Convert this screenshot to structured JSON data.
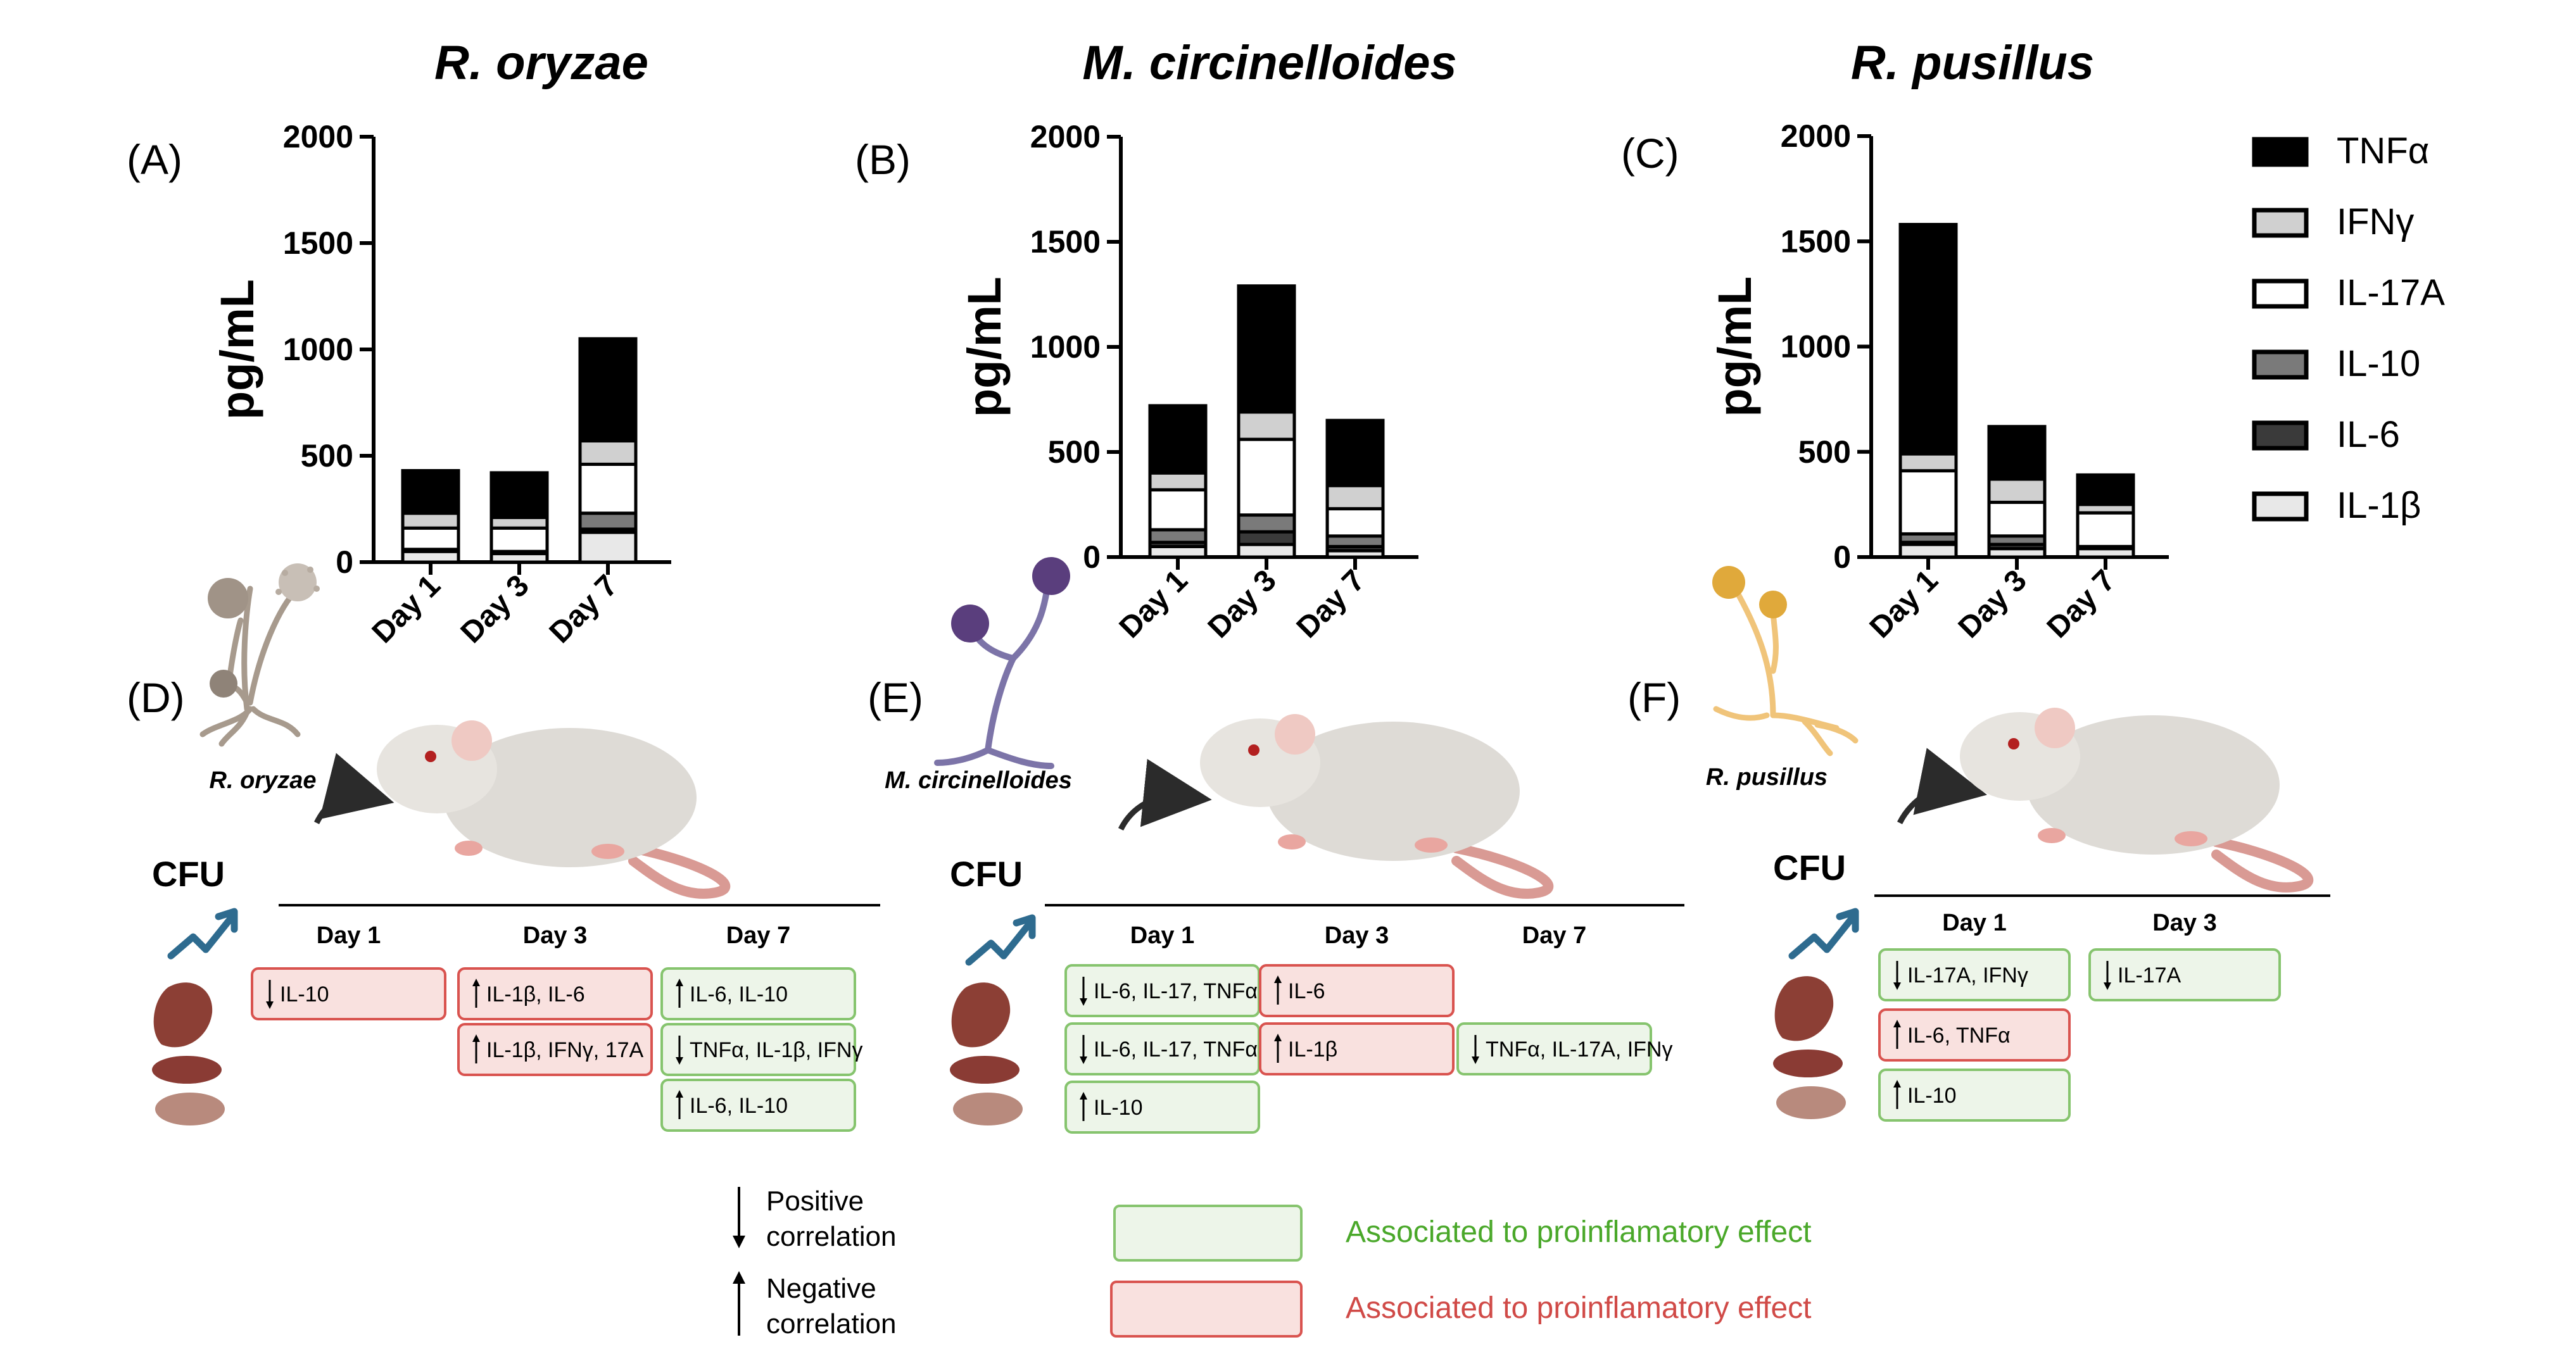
{
  "figure": {
    "species_titles": [
      "R. oryzae",
      "M. circinelloides",
      "R. pusillus"
    ],
    "panel_letters": [
      "(A)",
      "(B)",
      "(C)",
      "(D)",
      "(E)",
      "(F)"
    ]
  },
  "chart_data": [
    {
      "type": "bar",
      "stacked": true,
      "title": "R. oryzae",
      "panel": "(A)",
      "ylabel": "pg/mL",
      "ylim": [
        0,
        2000
      ],
      "yticks": [
        "0",
        "500",
        "1000",
        "1500",
        "2000"
      ],
      "categories": [
        "Day 1",
        "Day 3",
        "Day 7"
      ],
      "series": [
        {
          "name": "IL-1β",
          "values": [
            50,
            40,
            140
          ]
        },
        {
          "name": "IL-6",
          "values": [
            5,
            5,
            15
          ]
        },
        {
          "name": "IL-10",
          "values": [
            5,
            5,
            75
          ]
        },
        {
          "name": "IL-17A",
          "values": [
            100,
            110,
            230
          ]
        },
        {
          "name": "IFNγ",
          "values": [
            70,
            50,
            110
          ]
        },
        {
          "name": "TNFα",
          "values": [
            200,
            210,
            480
          ]
        }
      ]
    },
    {
      "type": "bar",
      "stacked": true,
      "title": "M. circinelloides",
      "panel": "(B)",
      "ylabel": "pg/mL",
      "ylim": [
        0,
        2000
      ],
      "yticks": [
        "0",
        "500",
        "1000",
        "1500",
        "2000"
      ],
      "categories": [
        "Day 1",
        "Day 3",
        "Day 7"
      ],
      "series": [
        {
          "name": "IL-1β",
          "values": [
            50,
            60,
            30
          ]
        },
        {
          "name": "IL-6",
          "values": [
            20,
            60,
            20
          ]
        },
        {
          "name": "IL-10",
          "values": [
            60,
            80,
            50
          ]
        },
        {
          "name": "IL-17A",
          "values": [
            190,
            360,
            130
          ]
        },
        {
          "name": "IFNγ",
          "values": [
            80,
            130,
            110
          ]
        },
        {
          "name": "TNFα",
          "values": [
            320,
            600,
            310
          ]
        }
      ]
    },
    {
      "type": "bar",
      "stacked": true,
      "title": "R. pusillus",
      "panel": "(C)",
      "ylabel": "pg/mL",
      "ylim": [
        0,
        2000
      ],
      "yticks": [
        "0",
        "500",
        "1000",
        "1500",
        "2000"
      ],
      "categories": [
        "Day 1",
        "Day 3",
        "Day 7"
      ],
      "series": [
        {
          "name": "IL-1β",
          "values": [
            60,
            40,
            40
          ]
        },
        {
          "name": "IL-6",
          "values": [
            10,
            20,
            5
          ]
        },
        {
          "name": "IL-10",
          "values": [
            40,
            40,
            5
          ]
        },
        {
          "name": "IL-17A",
          "values": [
            300,
            160,
            160
          ]
        },
        {
          "name": "IFNγ",
          "values": [
            80,
            110,
            40
          ]
        },
        {
          "name": "TNFα",
          "values": [
            1090,
            250,
            140
          ]
        }
      ]
    }
  ],
  "legend": {
    "items": [
      {
        "label": "TNFα",
        "fill": "#000000"
      },
      {
        "label": "IFNγ",
        "fill": "#d0d0d0"
      },
      {
        "label": "IL-17A",
        "fill": "#ffffff"
      },
      {
        "label": "IL-10",
        "fill": "#7a7a7a"
      },
      {
        "label": "IL-6",
        "fill": "#3a3a3a"
      },
      {
        "label": "IL-1β",
        "fill": "#e8e8e8"
      }
    ]
  },
  "stack_fills": {
    "IL-1β": "#e8e8e8",
    "IL-6": "#3a3a3a",
    "IL-10": "#7a7a7a",
    "IL-17A": "#ffffff",
    "IFNγ": "#d0d0d0",
    "TNFα": "#000000"
  },
  "colors": {
    "green_fill": "#edf5e9",
    "green_stroke": "#86c46e",
    "green_text": "#4aa82a",
    "red_fill": "#f9e1df",
    "red_stroke": "#d9534f",
    "red_text": "#d04a47",
    "arrow_blue": "#2e6b8f"
  },
  "illustrations": {
    "fungus_labels": [
      "R. oryzae",
      "M. circinelloides",
      "R. pusillus"
    ],
    "cfu_label": "CFU"
  },
  "tables": [
    {
      "days": [
        "Day 1",
        "Day 3",
        "Day 7"
      ],
      "columns": [
        [
          {
            "arrow": "down",
            "text": "IL-10",
            "color": "red"
          }
        ],
        [
          {
            "arrow": "up",
            "text": "IL-1β, IL-6",
            "color": "red"
          },
          {
            "arrow": "up",
            "text": "IL-1β, IFNγ, 17A",
            "color": "red"
          }
        ],
        [
          {
            "arrow": "up",
            "text": "IL-6, IL-10",
            "color": "green"
          },
          {
            "arrow": "down",
            "text": "TNFα, IL-1β, IFNγ",
            "color": "green"
          },
          {
            "arrow": "up",
            "text": "IL-6, IL-10",
            "color": "green"
          }
        ]
      ]
    },
    {
      "days": [
        "Day 1",
        "Day 3",
        "Day 7"
      ],
      "columns": [
        [
          {
            "arrow": "down",
            "text": "IL-6, IL-17, TNFα",
            "color": "green"
          },
          {
            "arrow": "down",
            "text": "IL-6, IL-17, TNFα",
            "color": "green"
          },
          {
            "arrow": "up",
            "text": "IL-10",
            "color": "green"
          }
        ],
        [
          {
            "arrow": "up",
            "text": "IL-6",
            "color": "red"
          },
          {
            "arrow": "up",
            "text": "IL-1β",
            "color": "red"
          }
        ],
        [
          {
            "arrow": "none",
            "text": "",
            "color": "none"
          },
          {
            "arrow": "down",
            "text": "TNFα, IL-17A, IFNγ",
            "color": "green"
          }
        ]
      ]
    },
    {
      "days": [
        "Day 1",
        "Day 3"
      ],
      "columns": [
        [
          {
            "arrow": "down",
            "text": "IL-17A, IFNγ",
            "color": "green"
          },
          {
            "arrow": "up",
            "text": "IL-6, TNFα",
            "color": "red"
          },
          {
            "arrow": "up",
            "text": "IL-10",
            "color": "green"
          }
        ],
        [
          {
            "arrow": "down",
            "text": "IL-17A",
            "color": "green"
          }
        ]
      ]
    }
  ],
  "key": {
    "positive": [
      "Positive",
      "correlation"
    ],
    "negative": [
      "Negative",
      "correlation"
    ],
    "green_label": "Associated to proinflamatory effect",
    "red_label": "Associated to proinflamatory effect"
  }
}
